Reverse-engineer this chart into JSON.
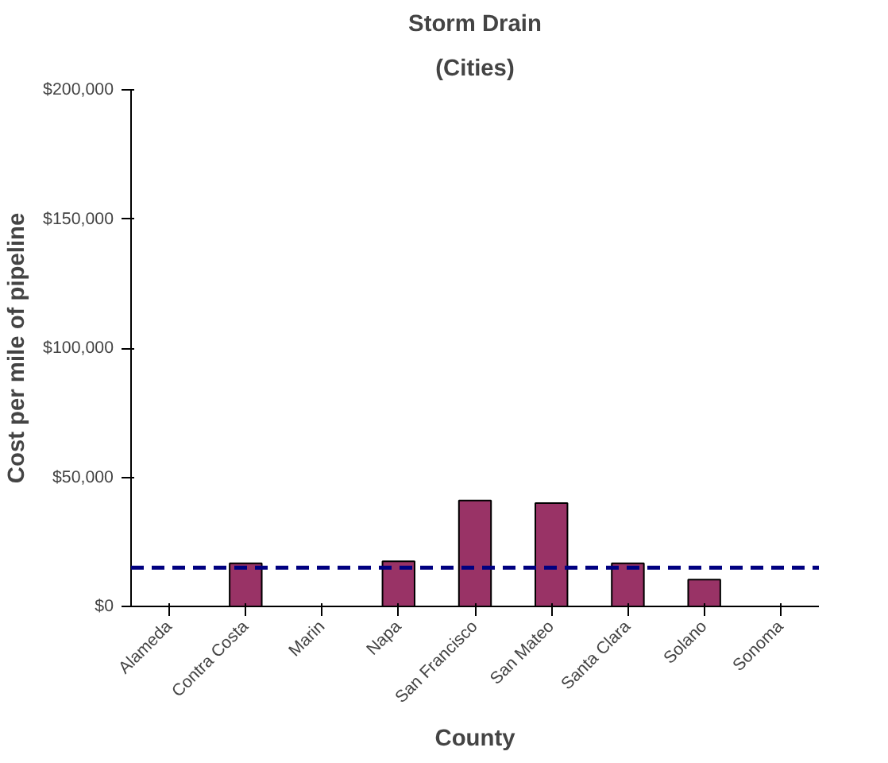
{
  "chart_data": {
    "type": "bar",
    "title": "Storm Drain",
    "subtitle": "(Cities)",
    "xlabel": "County",
    "ylabel": "Cost per mile of pipeline",
    "categories": [
      "Alameda",
      "Contra Costa",
      "Marin",
      "Napa",
      "San Francisco",
      "San Mateo",
      "Santa Clara",
      "Solano",
      "Sonoma"
    ],
    "values": [
      null,
      16700,
      null,
      17500,
      41000,
      40000,
      16700,
      10400,
      null
    ],
    "color": "#993366",
    "ylim": [
      0,
      200000
    ],
    "yticks": [
      {
        "value": 0,
        "label": "$0"
      },
      {
        "value": 50000,
        "label": "$50,000"
      },
      {
        "value": 100000,
        "label": "$100,000"
      },
      {
        "value": 150000,
        "label": "$150,000"
      },
      {
        "value": 200000,
        "label": "$200,000"
      }
    ],
    "ref_lines": [
      {
        "axis": "y",
        "value": 15000,
        "color": "#000080",
        "line_style": "dashed"
      }
    ],
    "grid": false
  }
}
